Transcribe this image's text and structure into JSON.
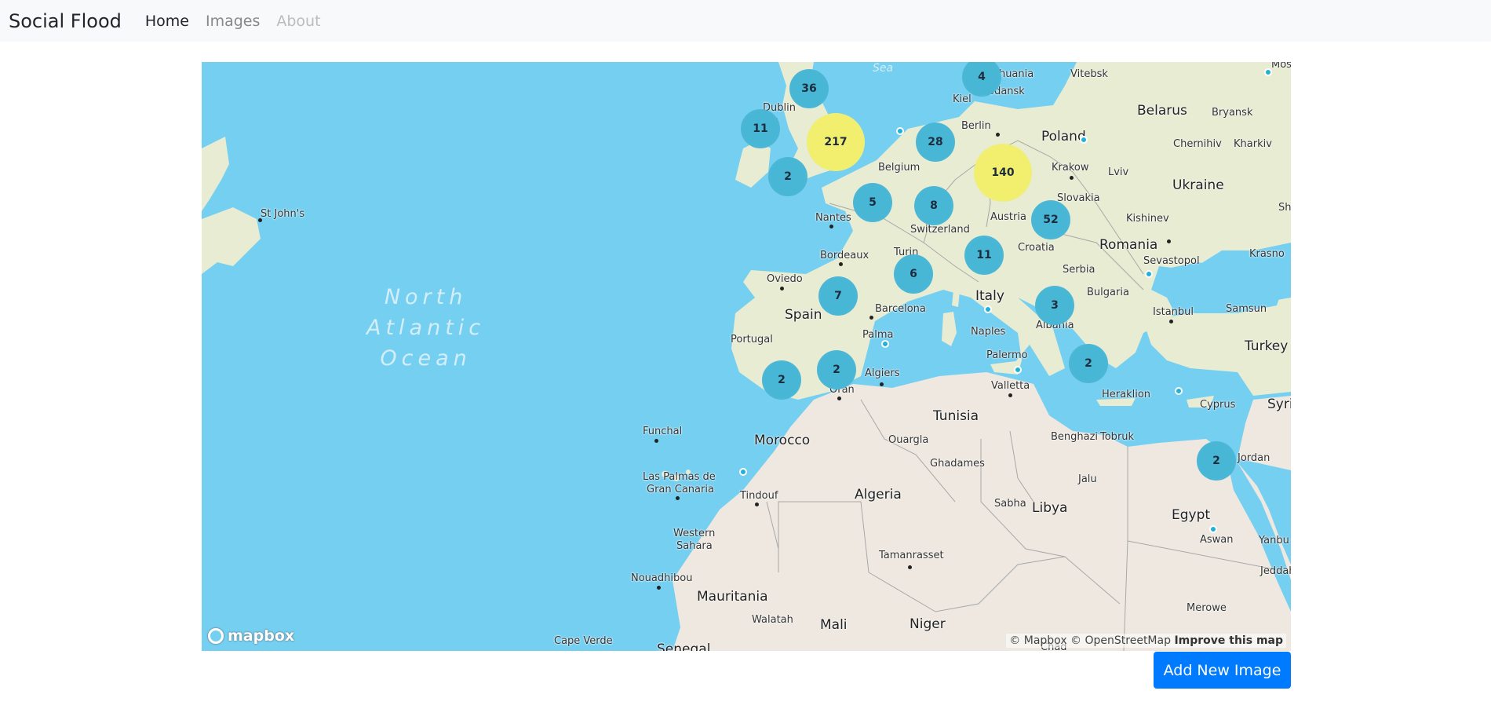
{
  "navbar": {
    "brand": "Social Flood",
    "links": [
      {
        "label": "Home",
        "state": "active"
      },
      {
        "label": "Images",
        "state": "normal"
      },
      {
        "label": "About",
        "state": "disabled"
      }
    ]
  },
  "map": {
    "clusters": [
      "36",
      "4",
      "11",
      "217",
      "28",
      "140",
      "2",
      "5",
      "8",
      "52",
      "11",
      "6",
      "7",
      "3",
      "2",
      "2",
      "2",
      "2"
    ],
    "ocean_label": "North Atlantic Ocean",
    "ocean_lines": [
      "North",
      "Atlantic",
      "Ocean"
    ],
    "sea_label": "Sea",
    "place_labels": [
      "Lithuania",
      "Vitebsk",
      "Mos",
      "Gdansk",
      "Belarus",
      "Bryansk",
      "Dublin",
      "Kiel",
      "Berlin",
      "Poland",
      "Chernihiv",
      "Kharkiv",
      "Belgium",
      "Krakow",
      "Lviv",
      "Ukraine",
      "Slovakia",
      "St John's",
      "Nantes",
      "Switzerland",
      "Austria",
      "Kishinev",
      "Croatia",
      "Romania",
      "Bordeaux",
      "Turin",
      "Sevastopol",
      "Krasno",
      "Oviedo",
      "Serbia",
      "Italy",
      "Bulgaria",
      "Spain",
      "Barcelona",
      "Istanbul",
      "Samsun",
      "Portugal",
      "Naples",
      "Albania",
      "Turkey",
      "Palma",
      "Palermo",
      "Algiers",
      "Valletta",
      "Oran",
      "Heraklion",
      "Cyprus",
      "Syria",
      "Tunisia",
      "Funchal",
      "Morocco",
      "Ouargla",
      "Benghazi",
      "Tobruk",
      "Jordan",
      "Ghadames",
      "Las Palmas de",
      "Gran Canaria",
      "Jalu",
      "Tindouf",
      "Algeria",
      "Sabha",
      "Libya",
      "Egypt",
      "Western",
      "Sahara",
      "Aswan",
      "Yanbu",
      "Tamanrasset",
      "Nouadhibou",
      "Jeddah",
      "Mauritania",
      "Merowe",
      "Walatah",
      "Mali",
      "Niger",
      "Cape Verde",
      "Senegal",
      "Chad",
      "Sh"
    ],
    "logo_text": "mapbox",
    "attribution": "© Mapbox © OpenStreetMap",
    "attribution_link": "Improve this map"
  },
  "actions": {
    "add_label": "Add New Image"
  },
  "colors": {
    "navbar_bg": "#f8f9fa",
    "water": "#75cff0",
    "land_europe": "#e7ecd3",
    "land_africa": "#eee8e0",
    "cluster_small": "#48b6d5",
    "cluster_large": "#f2ef6e",
    "button_primary": "#007bff"
  }
}
